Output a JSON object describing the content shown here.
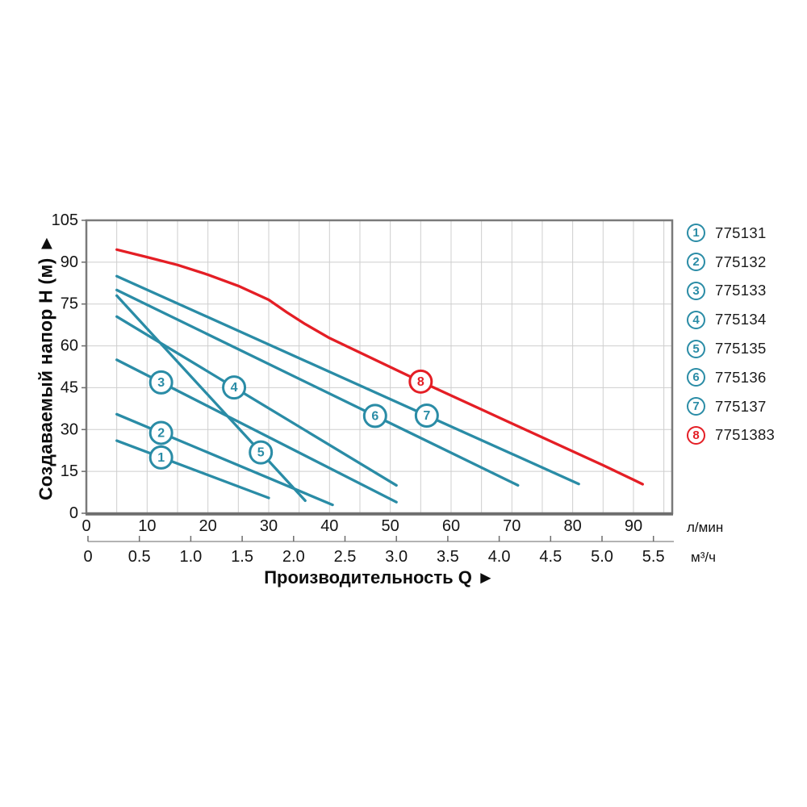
{
  "chart_data": {
    "type": "line",
    "title": "",
    "ylabel": "Создаваемый напор H (м) ►",
    "xlabel": "Производительность Q ►",
    "y_axis": {
      "ticks": [
        0,
        15,
        30,
        45,
        60,
        75,
        90,
        105
      ],
      "range": [
        0,
        105
      ]
    },
    "x_axis_primary": {
      "unit": "л/мин",
      "ticks": [
        0,
        10,
        20,
        30,
        40,
        50,
        60,
        70,
        80,
        90
      ],
      "range": [
        0,
        96.5
      ]
    },
    "x_axis_secondary": {
      "unit": "м³/ч",
      "ticks": [
        "0",
        "0.5",
        "1.0",
        "1.5",
        "2.0",
        "2.5",
        "3.0",
        "3.5",
        "4.0",
        "4.5",
        "5.0",
        "5.5"
      ],
      "range": [
        0,
        5.5
      ]
    },
    "grid": {
      "on": true,
      "x_step_lmin": 5,
      "y_step_m": 15
    },
    "colors": {
      "teal": "#2a8ca6",
      "red": "#e41e25",
      "grid": "#cecece",
      "frame": "#7a7a7a",
      "frame_dark": "#6d6d6d",
      "text": "#141414"
    },
    "series": [
      {
        "id": "1",
        "code": "775131",
        "color": "#2a8ca6",
        "points": [
          [
            5,
            26
          ],
          [
            30,
            5.5
          ]
        ],
        "label_at": [
          12.3,
          20.0
        ]
      },
      {
        "id": "2",
        "code": "775132",
        "color": "#2a8ca6",
        "points": [
          [
            5,
            35.5
          ],
          [
            40.5,
            3
          ]
        ],
        "label_at": [
          12.3,
          28.8
        ]
      },
      {
        "id": "3",
        "code": "775133",
        "color": "#2a8ca6",
        "points": [
          [
            5,
            55
          ],
          [
            51,
            4
          ]
        ],
        "label_at": [
          12.3,
          46.9
        ]
      },
      {
        "id": "4",
        "code": "775134",
        "color": "#2a8ca6",
        "points": [
          [
            5,
            70.5
          ],
          [
            51,
            10
          ]
        ],
        "label_at": [
          24.3,
          45.1
        ]
      },
      {
        "id": "5",
        "code": "775135",
        "color": "#2a8ca6",
        "points": [
          [
            5,
            78
          ],
          [
            36,
            4.5
          ]
        ],
        "label_at": [
          28.7,
          21.8
        ]
      },
      {
        "id": "6",
        "code": "775136",
        "color": "#2a8ca6",
        "points": [
          [
            5,
            80
          ],
          [
            71,
            10
          ]
        ],
        "label_at": [
          47.5,
          34.9
        ]
      },
      {
        "id": "7",
        "code": "775137",
        "color": "#2a8ca6",
        "points": [
          [
            5,
            85
          ],
          [
            81,
            10.5
          ]
        ],
        "label_at": [
          56,
          35.0
        ]
      },
      {
        "id": "8",
        "code": "7751383",
        "color": "#e41e25",
        "points": [
          [
            5,
            94.5
          ],
          [
            10,
            91.8
          ],
          [
            15,
            89
          ],
          [
            20,
            85.5
          ],
          [
            25,
            81.5
          ],
          [
            30,
            76.5
          ],
          [
            33,
            72
          ],
          [
            36,
            67.8
          ],
          [
            40,
            62.8
          ],
          [
            45,
            57.6
          ],
          [
            50,
            52.4
          ],
          [
            55,
            47.2
          ],
          [
            60,
            42.2
          ],
          [
            65,
            37.2
          ],
          [
            70,
            32.2
          ],
          [
            75,
            27.2
          ],
          [
            80,
            22.2
          ],
          [
            85,
            17.2
          ],
          [
            90,
            12
          ],
          [
            91.5,
            10.4
          ]
        ],
        "label_at": [
          55,
          47.2
        ]
      }
    ]
  }
}
